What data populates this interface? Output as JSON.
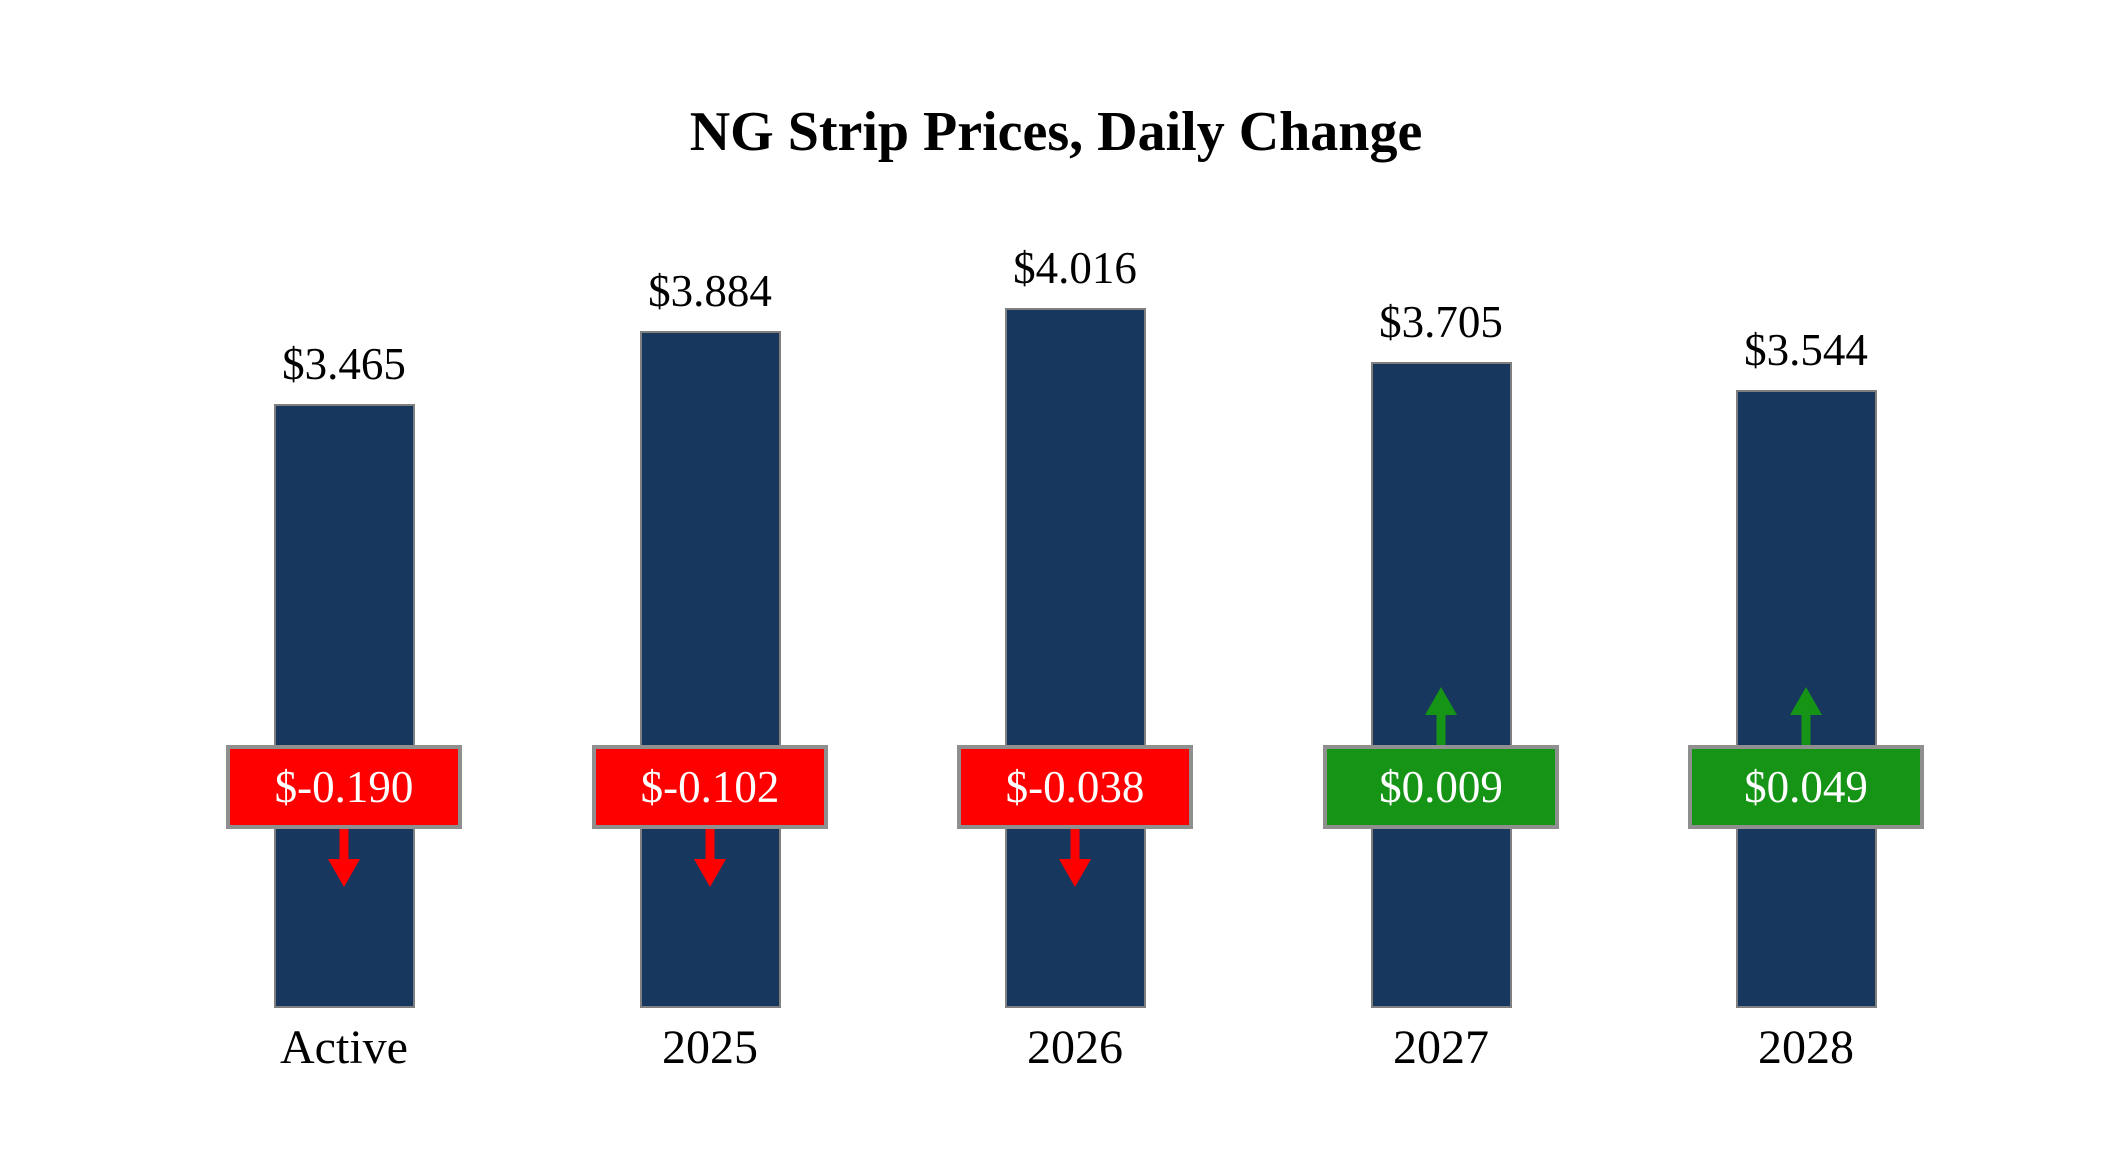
{
  "title": "NG Strip Prices, Daily Change",
  "colors": {
    "bar": "#17375E",
    "bar_border": "#7F7F7F",
    "negative": "#FF0000",
    "positive": "#169416",
    "badge_border": "#8F8F8F",
    "background": "#FFFFFF",
    "badge_text": "#FFFFFF"
  },
  "chart_data": {
    "type": "bar",
    "title": "NG Strip Prices, Daily Change",
    "categories": [
      "Active",
      "2025",
      "2026",
      "2027",
      "2028"
    ],
    "values": [
      3.465,
      3.884,
      4.016,
      3.705,
      3.544
    ],
    "value_labels": [
      "$3.465",
      "$3.884",
      "$4.016",
      "$3.705",
      "$3.544"
    ],
    "changes": [
      -0.19,
      -0.102,
      -0.038,
      0.009,
      0.049
    ],
    "change_labels": [
      "$-0.190",
      "$-0.102",
      "$-0.038",
      "$0.009",
      "$0.049"
    ],
    "change_direction": [
      "down",
      "down",
      "down",
      "up",
      "up"
    ],
    "xlabel": "",
    "ylabel": "",
    "ylim": [
      0,
      4.3
    ],
    "grid": false,
    "legend": false
  }
}
